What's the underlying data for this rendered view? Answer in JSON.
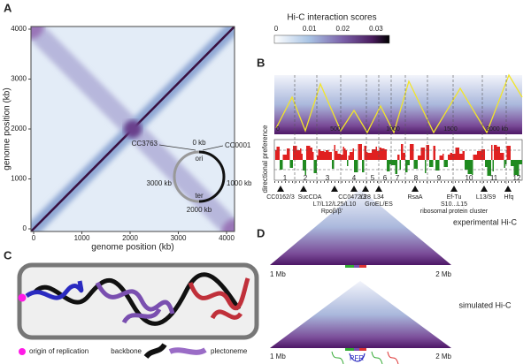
{
  "panel_labels": [
    "A",
    "B",
    "C",
    "D"
  ],
  "panel_a": {
    "xlabel": "genome position (kb)",
    "ylabel": "genome position (kb)",
    "xticks": [
      0,
      1000,
      2000,
      3000,
      4000
    ],
    "yticks": [
      0,
      1000,
      2000,
      3000,
      4000
    ],
    "colorbar": {
      "title": "Hi-C interaction scores",
      "ticks": [
        0,
        0.01,
        0.02,
        0.03
      ]
    },
    "genome_map": [
      "CC3763",
      "0 kb",
      "CC0001",
      "ori",
      "3000 kb",
      "1000 kb",
      "ter",
      "2000 kb"
    ]
  },
  "panel_b": {
    "xticks": [
      "0",
      "500",
      "1000",
      "1500",
      "2000 kb"
    ],
    "ylabel": "directional preference",
    "domains": [
      "1",
      "2",
      "3",
      "4",
      "5",
      "6",
      "7",
      "8",
      "9",
      "10",
      "11",
      "12"
    ],
    "genes": [
      "CC0162/3",
      "SucCDA",
      "CC0472/3",
      "L28",
      "L34",
      "RsaA",
      "Ef-Tu",
      "L13/S9",
      "L7/L12/L25/L10",
      "GroEL/ES",
      "S10...L15",
      "Hfq",
      "Rpoβ/β'",
      "ribosomal protein cluster"
    ]
  },
  "panel_c": {
    "legend": [
      "origin of replication",
      "backbone",
      "plectoneme"
    ]
  },
  "panel_d": {
    "labels": [
      "experimental Hi-C",
      "simulated Hi-C",
      "1 Mb",
      "2 Mb",
      "1 Mb",
      "2 Mb",
      "PFR"
    ]
  }
}
